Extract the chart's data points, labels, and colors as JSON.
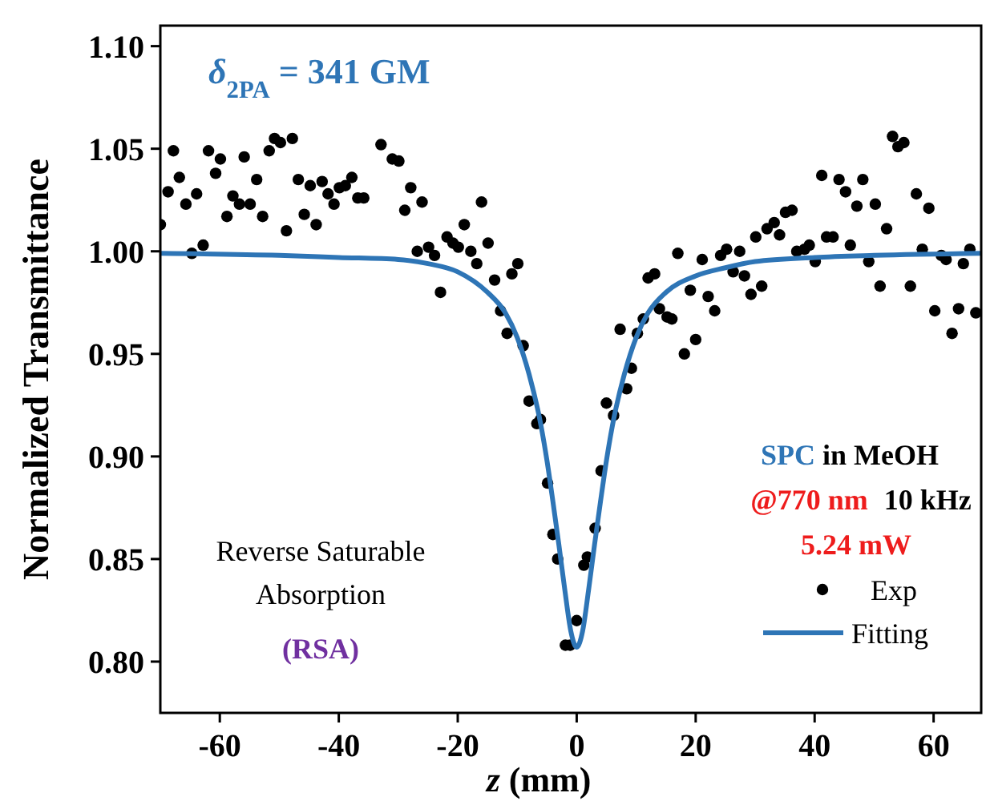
{
  "chart_data": {
    "type": "scatter",
    "xlabel": "z (mm)",
    "ylabel": "Normalized Transmittance",
    "xlim": [
      -70,
      68
    ],
    "ylim": [
      0.775,
      1.11
    ],
    "xticks": [
      -60,
      -40,
      -20,
      0,
      20,
      40,
      60
    ],
    "yticks": [
      {
        "value": 0.8,
        "label": "0.80"
      },
      {
        "value": 0.85,
        "label": "0.85"
      },
      {
        "value": 0.9,
        "label": "0.90"
      },
      {
        "value": 0.95,
        "label": "0.95"
      },
      {
        "value": 1.0,
        "label": "1.00"
      },
      {
        "value": 1.05,
        "label": "1.05"
      },
      {
        "value": 1.1,
        "label": "1.10"
      }
    ],
    "grid": false,
    "legend": "bottom right",
    "annotations": [
      "δ$_{2PA}$ = 341 GM",
      "SPC",
      "in MeOH",
      "@770 nm",
      "10 kHz",
      "5.24 mW",
      "Reverse Saturable",
      "Absorption",
      "(RSA)"
    ],
    "series": [
      {
        "name": "Exp",
        "marker": "circle",
        "color": "#000000",
        "x": [
          -70.0,
          -68.7,
          -67.8,
          -66.8,
          -65.7,
          -64.7,
          -63.9,
          -62.8,
          -61.9,
          -60.7,
          -59.9,
          -58.8,
          -57.8,
          -56.7,
          -55.9,
          -54.9,
          -53.8,
          -52.8,
          -51.7,
          -50.8,
          -49.8,
          -48.8,
          -47.8,
          -46.8,
          -45.8,
          -44.8,
          -43.8,
          -42.8,
          -41.8,
          -40.8,
          -39.9,
          -38.9,
          -37.8,
          -36.8,
          -35.8,
          -32.9,
          -31.0,
          -29.9,
          -28.9,
          -27.9,
          -26.8,
          -26.0,
          -24.9,
          -23.9,
          -22.9,
          -21.8,
          -20.8,
          -19.9,
          -18.9,
          -17.8,
          -16.8,
          -16.0,
          -14.9,
          -13.8,
          -12.8,
          -11.7,
          -10.9,
          -9.9,
          -9.0,
          -8.0,
          -6.7,
          -6.1,
          -4.9,
          -4.0,
          -3.2,
          -1.9,
          -1.1,
          0,
          1.2,
          1.8,
          3.1,
          4.1,
          5.0,
          6.2,
          7.3,
          8.4,
          9.2,
          10.2,
          11.2,
          12.0,
          13.1,
          13.9,
          15.2,
          16.0,
          17.0,
          18.1,
          19.1,
          20.0,
          21.1,
          22.1,
          23.2,
          24.2,
          25.2,
          26.3,
          27.4,
          28.2,
          29.3,
          30.1,
          31.1,
          32.0,
          33.2,
          34.1,
          35.1,
          36.2,
          37.0,
          38.3,
          39.1,
          40.1,
          41.2,
          42.0,
          43.1,
          44.1,
          45.2,
          46.0,
          47.1,
          48.1,
          49.1,
          50.2,
          51.0,
          52.1,
          53.1,
          54.0,
          55.0,
          56.1,
          57.1,
          58.1,
          59.2,
          60.2,
          61.3,
          62.1,
          63.1,
          64.2,
          65.0,
          66.1,
          67.1
        ],
        "values": [
          1.013,
          1.029,
          1.049,
          1.036,
          1.023,
          0.999,
          1.028,
          1.003,
          1.049,
          1.038,
          1.045,
          1.017,
          1.027,
          1.023,
          1.046,
          1.023,
          1.035,
          1.017,
          1.049,
          1.055,
          1.053,
          1.01,
          1.055,
          1.035,
          1.018,
          1.032,
          1.013,
          1.034,
          1.028,
          1.023,
          1.031,
          1.032,
          1.036,
          1.026,
          1.026,
          1.052,
          1.045,
          1.044,
          1.02,
          1.031,
          1.0,
          1.024,
          1.002,
          0.998,
          0.98,
          1.007,
          1.004,
          1.002,
          1.013,
          1.0,
          0.994,
          1.024,
          1.004,
          0.986,
          0.971,
          0.96,
          0.989,
          0.994,
          0.954,
          0.927,
          0.916,
          0.918,
          0.887,
          0.862,
          0.85,
          0.808,
          0.808,
          0.82,
          0.847,
          0.851,
          0.865,
          0.893,
          0.926,
          0.92,
          0.962,
          0.933,
          0.943,
          0.96,
          0.967,
          0.987,
          0.989,
          0.972,
          0.968,
          0.967,
          0.999,
          0.95,
          0.981,
          0.957,
          0.996,
          0.978,
          0.971,
          0.998,
          1.001,
          0.99,
          1.0,
          0.988,
          0.979,
          1.007,
          0.983,
          1.011,
          1.014,
          1.008,
          1.019,
          1.02,
          1.0,
          1.001,
          1.003,
          0.995,
          1.037,
          1.007,
          1.007,
          1.035,
          1.029,
          1.003,
          1.022,
          1.035,
          0.995,
          1.023,
          0.983,
          1.011,
          1.056,
          1.051,
          1.053,
          0.983,
          1.028,
          1.001,
          1.021,
          0.971,
          0.998,
          0.996,
          0.96,
          0.972,
          0.994,
          1.001,
          0.97
        ]
      },
      {
        "name": "Fitting",
        "type": "line",
        "marker": "none",
        "line_style": "solid",
        "color": "#2e75b6",
        "x": [
          -70,
          -50,
          -40,
          -30,
          -25,
          -20,
          -15,
          -12,
          -10,
          -8,
          -6,
          -5,
          -4,
          -3,
          -2,
          -1,
          0,
          1,
          2,
          3,
          4,
          5,
          6,
          8,
          10,
          12,
          15,
          20,
          25,
          30,
          40,
          50,
          68
        ],
        "values": [
          0.999,
          0.998,
          0.997,
          0.996,
          0.994,
          0.99,
          0.98,
          0.97,
          0.958,
          0.94,
          0.915,
          0.898,
          0.878,
          0.857,
          0.835,
          0.815,
          0.807,
          0.815,
          0.835,
          0.857,
          0.878,
          0.898,
          0.915,
          0.94,
          0.958,
          0.97,
          0.98,
          0.988,
          0.992,
          0.995,
          0.997,
          0.998,
          0.999
        ]
      }
    ]
  }
}
